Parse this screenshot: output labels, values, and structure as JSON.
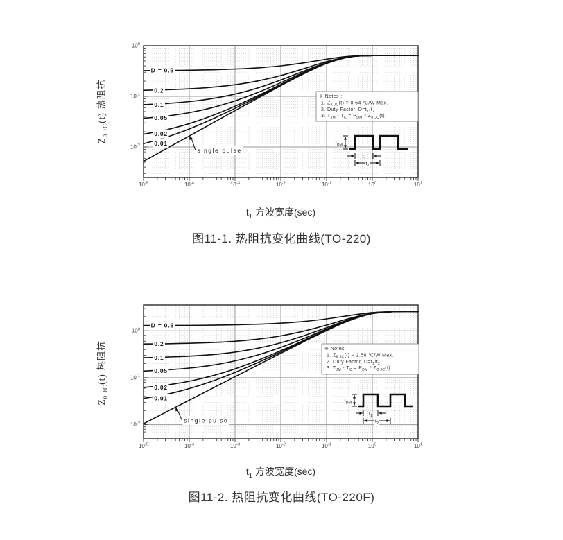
{
  "figures": [
    {
      "caption": "图11-1. 热阻抗变化曲线(TO-220)",
      "xlabel": "t_{1} 方波宽度(sec)",
      "ylabel": "Z_{θ JC}(t) 热阻抗",
      "notes": [
        "※ Notes :",
        "1. Z_{θ JC}(t) = 0.64 ℃/W Max.",
        "2. Duty Factor, D=t_{1}/t_{2}",
        "3. T_{JM} - T_{C} = P_{DM} * Z_{θ JC}(t)"
      ],
      "waveform_labels": {
        "pdm": "P_{DM}",
        "t1": "t_{1}",
        "t2": "t_{2}"
      }
    },
    {
      "caption": "图11-2. 热阻抗变化曲线(TO-220F)",
      "xlabel": "t_{1} 方波宽度(sec)",
      "ylabel": "Z_{θ JC}(t) 热阻抗",
      "notes": [
        "※ Notes :",
        "1. Z_{θ JC}(t) = 2.58 ℃/W Max.",
        "2. Duty Factor, D=t_{1}/t_{2}",
        "3. T_{JM} - T_{C} = P_{DM} * Z_{θ JC}(t)"
      ],
      "waveform_labels": {
        "pdm": "P_{DM}",
        "t1": "t_{1}",
        "t2": "t_{2}"
      }
    }
  ],
  "chart_data": [
    {
      "type": "line",
      "title": "图11-1. 热阻抗变化曲线(TO-220)",
      "xlabel": "t1 方波宽度(sec)",
      "ylabel": "ZθJC(t) 热阻抗",
      "log_x": true,
      "log_y": true,
      "grid": true,
      "legend": "on-curve labels",
      "xlim": [
        1e-05,
        10
      ],
      "ylim": [
        0.0025,
        1.0
      ],
      "x_ticks": [
        {
          "label": "10^{-5}",
          "value": 1e-05
        },
        {
          "label": "10^{-4}",
          "value": 0.0001
        },
        {
          "label": "10^{-3}",
          "value": 0.001
        },
        {
          "label": "10^{-2}",
          "value": 0.01
        },
        {
          "label": "10^{-1}",
          "value": 0.1
        },
        {
          "label": "10^{0}",
          "value": 1
        },
        {
          "label": "10^{1}",
          "value": 10
        }
      ],
      "y_ticks": [
        {
          "label": "10^{0}",
          "value": 1
        },
        {
          "label": "10^{-1}",
          "value": 0.1
        },
        {
          "label": "10^{-2}",
          "value": 0.01
        }
      ],
      "x": [
        1e-05,
        3.16e-05,
        0.0001,
        0.000316,
        0.001,
        0.00316,
        0.01,
        0.0316,
        0.1,
        0.316,
        1,
        3.16,
        10
      ],
      "series": [
        {
          "name": "D=0.5",
          "label": "D = 0.5",
          "label_at": [
            1.45e-05,
            0.325
          ],
          "values": [
            0.3226,
            0.3246,
            0.3283,
            0.3347,
            0.3461,
            0.3662,
            0.4013,
            0.4595,
            0.5432,
            0.6199,
            0.6398,
            0.64,
            0.64
          ]
        },
        {
          "name": "D=0.2",
          "label": "0.2",
          "label_at": [
            1.7e-05,
            0.131
          ],
          "values": [
            0.1322,
            0.1354,
            0.1412,
            0.1515,
            0.1697,
            0.2019,
            0.258,
            0.3512,
            0.4851,
            0.6079,
            0.6397,
            0.64,
            0.64
          ]
        },
        {
          "name": "D=0.1",
          "label": "0.1",
          "label_at": [
            1.7e-05,
            0.0685
          ],
          "values": [
            0.0687,
            0.0724,
            0.0789,
            0.0904,
            0.1109,
            0.1472,
            0.2103,
            0.3151,
            0.4658,
            0.6039,
            0.6396,
            0.64,
            0.64
          ]
        },
        {
          "name": "D=0.05",
          "label": "0.05",
          "label_at": [
            1.7e-05,
            0.0372
          ],
          "values": [
            0.037,
            0.0408,
            0.0477,
            0.0599,
            0.0816,
            0.1198,
            0.1864,
            0.297,
            0.4561,
            0.6019,
            0.6396,
            0.64,
            0.64
          ]
        },
        {
          "name": "D=0.02",
          "label": "0.02",
          "label_at": [
            1.7e-05,
            0.018
          ],
          "values": [
            0.0179,
            0.0219,
            0.029,
            0.0416,
            0.0639,
            0.1033,
            0.1721,
            0.2862,
            0.4503,
            0.6006,
            0.6396,
            0.64,
            0.64
          ]
        },
        {
          "name": "D=0.01",
          "label": "0.01",
          "label_at": [
            1.7e-05,
            0.0116
          ],
          "values": [
            0.0116,
            0.0156,
            0.0227,
            0.0355,
            0.0581,
            0.0979,
            0.1673,
            0.2826,
            0.4484,
            0.6003,
            0.6396,
            0.64,
            0.64
          ]
        },
        {
          "name": "single-pulse",
          "label": "single pulse",
          "label_at": [
            0.00015,
            0.0085
          ],
          "arrow_tip": [
            0.000102,
            0.0166
          ],
          "values": [
            0.0052,
            0.0093,
            0.0165,
            0.0294,
            0.0522,
            0.0924,
            0.1625,
            0.279,
            0.4464,
            0.5999,
            0.6396,
            0.64,
            0.64
          ]
        }
      ]
    },
    {
      "type": "line",
      "title": "图11-2. 热阻抗变化曲线(TO-220F)",
      "xlabel": "t1 方波宽度(sec)",
      "ylabel": "ZθJC(t) 热阻抗",
      "log_x": true,
      "log_y": true,
      "grid": true,
      "legend": "on-curve labels",
      "xlim": [
        1e-05,
        10
      ],
      "ylim": [
        0.005,
        3.55
      ],
      "x_ticks": [
        {
          "label": "10^{-5}",
          "value": 1e-05
        },
        {
          "label": "10^{-4}",
          "value": 0.0001
        },
        {
          "label": "10^{-3}",
          "value": 0.001
        },
        {
          "label": "10^{-2}",
          "value": 0.01
        },
        {
          "label": "10^{-1}",
          "value": 0.1
        },
        {
          "label": "10^{0}",
          "value": 1
        },
        {
          "label": "10^{1}",
          "value": 10
        }
      ],
      "y_ticks": [
        {
          "label": "10^{0}",
          "value": 1
        },
        {
          "label": "10^{-1}",
          "value": 0.1
        },
        {
          "label": "10^{-2}",
          "value": 0.01
        }
      ],
      "x": [
        1e-05,
        3.16e-05,
        0.0001,
        0.000316,
        0.001,
        0.00316,
        0.01,
        0.0316,
        0.1,
        0.316,
        1,
        3.16,
        10
      ],
      "series": [
        {
          "name": "D=0.5",
          "label": "D = 0.5",
          "label_at": [
            1.45e-05,
            1.3
          ],
          "values": [
            1.2953,
            1.2994,
            1.3067,
            1.3196,
            1.3426,
            1.3835,
            1.4558,
            1.5822,
            1.7954,
            2.1154,
            2.4518,
            2.5767,
            2.58
          ]
        },
        {
          "name": "D=0.2",
          "label": "0.2",
          "label_at": [
            1.7e-05,
            0.525
          ],
          "values": [
            0.5244,
            0.531,
            0.5427,
            0.5634,
            0.6002,
            0.6656,
            0.7814,
            0.9835,
            1.3247,
            1.8367,
            2.3749,
            2.5747,
            2.58
          ]
        },
        {
          "name": "D=0.1",
          "label": "0.1",
          "label_at": [
            1.7e-05,
            0.268
          ],
          "values": [
            0.2675,
            0.2749,
            0.288,
            0.3113,
            0.3528,
            0.4263,
            0.5565,
            0.784,
            1.1678,
            1.7438,
            2.3492,
            2.574,
            2.58
          ]
        },
        {
          "name": "D=0.05",
          "label": "0.05",
          "label_at": [
            1.7e-05,
            0.139
          ],
          "values": [
            0.139,
            0.1468,
            0.1606,
            0.1852,
            0.229,
            0.3066,
            0.4441,
            0.6842,
            1.0894,
            1.6974,
            2.3364,
            2.5737,
            2.58
          ]
        },
        {
          "name": "D=0.02",
          "label": "0.02",
          "label_at": [
            1.7e-05,
            0.062
          ],
          "values": [
            0.0619,
            0.07,
            0.0842,
            0.1096,
            0.1548,
            0.2349,
            0.3767,
            0.6243,
            1.0423,
            1.6695,
            2.3287,
            2.5735,
            2.58
          ]
        },
        {
          "name": "D=0.01",
          "label": "0.01",
          "label_at": [
            1.7e-05,
            0.0363
          ],
          "values": [
            0.0362,
            0.0443,
            0.0588,
            0.0844,
            0.13,
            0.2109,
            0.3542,
            0.6044,
            1.0266,
            1.6602,
            2.3262,
            2.5734,
            2.58
          ]
        },
        {
          "name": "single-pulse",
          "label": "single pulse",
          "label_at": [
            7.6e-05,
            0.0122
          ],
          "arrow_tip": [
            5e-05,
            0.0235
          ],
          "values": [
            0.0105,
            0.0187,
            0.0333,
            0.0592,
            0.1053,
            0.187,
            0.3317,
            0.5844,
            1.0109,
            1.6509,
            2.3236,
            2.5733,
            2.58
          ]
        }
      ]
    }
  ]
}
